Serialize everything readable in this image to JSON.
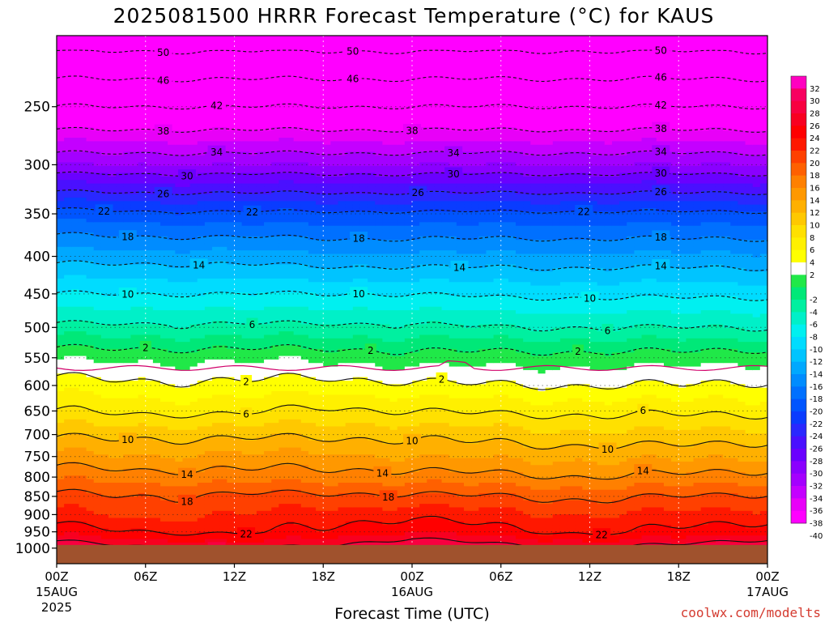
{
  "chart_data": {
    "type": "heatmap",
    "title": "2025081500 HRRR Forecast Temperature (°C) for KAUS",
    "xlabel": "Forecast Time (UTC)",
    "credit": "coolwx.com/modelts",
    "x_range_hours": [
      0,
      48
    ],
    "x_ticks": [
      {
        "hour": 0,
        "label": "00Z",
        "date": "15AUG",
        "year": "2025"
      },
      {
        "hour": 6,
        "label": "06Z"
      },
      {
        "hour": 12,
        "label": "12Z"
      },
      {
        "hour": 18,
        "label": "18Z"
      },
      {
        "hour": 24,
        "label": "00Z",
        "date": "16AUG"
      },
      {
        "hour": 30,
        "label": "06Z"
      },
      {
        "hour": 36,
        "label": "12Z"
      },
      {
        "hour": 42,
        "label": "18Z"
      },
      {
        "hour": 48,
        "label": "00Z",
        "date": "17AUG"
      }
    ],
    "y_axis": "pressure (hPa), log scale, inverted",
    "y_range_hpa": [
      200,
      1050
    ],
    "y_ticks": [
      250,
      300,
      350,
      400,
      450,
      500,
      550,
      600,
      650,
      700,
      750,
      800,
      850,
      900,
      950,
      1000
    ],
    "ground_level_hpa": 990,
    "freezing_level_hpa": 568,
    "colorbar": {
      "tick_labels": [
        "32",
        "30",
        "28",
        "26",
        "24",
        "22",
        "20",
        "18",
        "16",
        "14",
        "12",
        "10",
        "8",
        "6",
        "4",
        "2",
        "-2",
        "-4",
        "-6",
        "-8",
        "-10",
        "-12",
        "-14",
        "-16",
        "-18",
        "-20",
        "-22",
        "-24",
        "-26",
        "-28",
        "-30",
        "-32",
        "-34",
        "-36",
        "-38",
        "-40"
      ],
      "levels": [
        -40,
        -38,
        -36,
        -34,
        -32,
        -30,
        -28,
        -26,
        -24,
        -22,
        -20,
        -18,
        -16,
        -14,
        -12,
        -10,
        -8,
        -6,
        -4,
        -2,
        0,
        2,
        4,
        6,
        8,
        10,
        12,
        14,
        16,
        18,
        20,
        22,
        24,
        26,
        28,
        30,
        32
      ],
      "colors": [
        "#ff00ff",
        "#e800f8",
        "#c400ff",
        "#a400ff",
        "#8a00ff",
        "#6a00ff",
        "#4a10ff",
        "#2a28ff",
        "#0a3cff",
        "#0055ff",
        "#0070ff",
        "#008cff",
        "#00a8ff",
        "#00c4ff",
        "#00dcff",
        "#00f0f0",
        "#00f0c8",
        "#00f0a0",
        "#00e878",
        "#20e848",
        "#ffffff",
        "#ffff00",
        "#fff000",
        "#ffe000",
        "#ffc800",
        "#ffb000",
        "#ff9800",
        "#ff8000",
        "#ff6000",
        "#ff4000",
        "#ff1800",
        "#ff0000",
        "#f80020",
        "#f80040",
        "#f80060",
        "#ff00c0"
      ]
    },
    "profile": {
      "note": "temperature (°C) vs pressure (hPa) by forecast hour",
      "hours": [
        0,
        6,
        12,
        18,
        24,
        30,
        36,
        42,
        48
      ],
      "pressure_levels": [
        1000,
        950,
        900,
        850,
        800,
        750,
        700,
        650,
        600,
        550,
        500,
        450,
        400,
        350,
        300,
        250,
        210
      ],
      "temperature": [
        [
          28,
          23,
          20.5,
          18.5,
          15.5,
          12.5,
          9.5,
          6,
          3,
          -0.5,
          -5.5,
          -10,
          -15,
          -21,
          -32,
          -42,
          -50
        ],
        [
          26.5,
          22,
          19.5,
          18,
          15,
          12,
          9.5,
          5.5,
          2.5,
          -0.5,
          -5.5,
          -10,
          -15,
          -21.5,
          -32,
          -42,
          -50
        ],
        [
          25.5,
          21.5,
          20,
          18.5,
          15,
          12.5,
          9.5,
          5.5,
          2.5,
          -0.5,
          -5.5,
          -10,
          -15,
          -21.5,
          -32,
          -42,
          -50
        ],
        [
          26.5,
          22.5,
          21,
          18.5,
          15,
          12.5,
          9.5,
          6.5,
          3,
          -0.5,
          -5.5,
          -10,
          -15.5,
          -21.5,
          -32,
          -42,
          -50
        ],
        [
          29,
          24,
          21.5,
          18.5,
          15,
          12,
          9.5,
          6,
          2.5,
          -1,
          -5.5,
          -10,
          -15.5,
          -21.5,
          -32,
          -42,
          -50
        ],
        [
          27,
          22.5,
          20.5,
          18,
          14.5,
          11.5,
          9,
          5.5,
          2,
          -1,
          -6,
          -10.5,
          -15.5,
          -21.5,
          -32,
          -42,
          -50
        ],
        [
          26,
          21.5,
          20,
          17.5,
          14,
          11.5,
          8.5,
          5.5,
          2,
          -1,
          -6,
          -10.5,
          -15.5,
          -21.5,
          -32,
          -42,
          -50
        ],
        [
          27,
          22.5,
          20.5,
          18,
          14.5,
          11.5,
          8.5,
          5.5,
          2,
          -1,
          -6,
          -10.5,
          -15.5,
          -21.5,
          -32,
          -42,
          -50
        ],
        [
          29,
          23.5,
          21,
          18.5,
          15,
          12,
          9,
          5.5,
          2.5,
          -0.5,
          -6,
          -10.5,
          -15.5,
          -21.5,
          -32,
          -42,
          -50
        ]
      ]
    },
    "contours": [
      {
        "value": -50,
        "label": "50",
        "dashed": true,
        "label_hours": [
          7.2,
          20,
          40.6
        ]
      },
      {
        "value": -46,
        "label": "46",
        "dashed": true,
        "label_hours": [
          7.2,
          20,
          40.6
        ]
      },
      {
        "value": -42,
        "label": "42",
        "dashed": true,
        "label_hours": [
          11,
          40.6
        ]
      },
      {
        "value": -38,
        "label": "38",
        "dashed": true,
        "label_hours": [
          7.2,
          24,
          40.6
        ]
      },
      {
        "value": -34,
        "label": "34",
        "dashed": true,
        "label_hours": [
          11,
          27,
          40.6
        ]
      },
      {
        "value": -30,
        "label": "30",
        "dashed": true,
        "label_hours": [
          9,
          27,
          40.6
        ]
      },
      {
        "value": -26,
        "label": "26",
        "dashed": true,
        "label_hours": [
          7.2,
          24.3,
          40.6
        ]
      },
      {
        "value": -22,
        "label": "22",
        "dashed": true,
        "label_hours": [
          3.3,
          13.3,
          35.8
        ]
      },
      {
        "value": -18,
        "label": "18",
        "dashed": true,
        "label_hours": [
          4.9,
          20.4,
          40.6
        ]
      },
      {
        "value": -14,
        "label": "14",
        "dashed": true,
        "label_hours": [
          9.7,
          27.2,
          40.6
        ]
      },
      {
        "value": -10,
        "label": "10",
        "dashed": true,
        "label_hours": [
          4.9,
          20.4,
          36
        ]
      },
      {
        "value": -6,
        "label": "6",
        "dashed": true,
        "label_hours": [
          13.3,
          37.4
        ]
      },
      {
        "value": -2,
        "label": "2",
        "dashed": true,
        "label_hours": [
          6,
          21.2,
          35
        ]
      },
      {
        "value": 2,
        "label": "2",
        "dashed": false,
        "label_hours": [
          12.9,
          25.9
        ]
      },
      {
        "value": 6,
        "label": "6",
        "dashed": false,
        "label_hours": [
          12.9,
          39.5
        ]
      },
      {
        "value": 10,
        "label": "10",
        "dashed": false,
        "label_hours": [
          5,
          24,
          37.4
        ]
      },
      {
        "value": 14,
        "label": "14",
        "dashed": false,
        "label_hours": [
          9,
          22,
          39.5
        ]
      },
      {
        "value": 18,
        "label": "18",
        "dashed": false,
        "label_hours": [
          9,
          22.5
        ]
      },
      {
        "value": 22,
        "label": "22",
        "dashed": false,
        "label_hours": [
          12.9,
          36.7
        ]
      },
      {
        "value": 26,
        "label": "26",
        "dashed": false,
        "label_hours": [
          11
        ]
      }
    ]
  }
}
